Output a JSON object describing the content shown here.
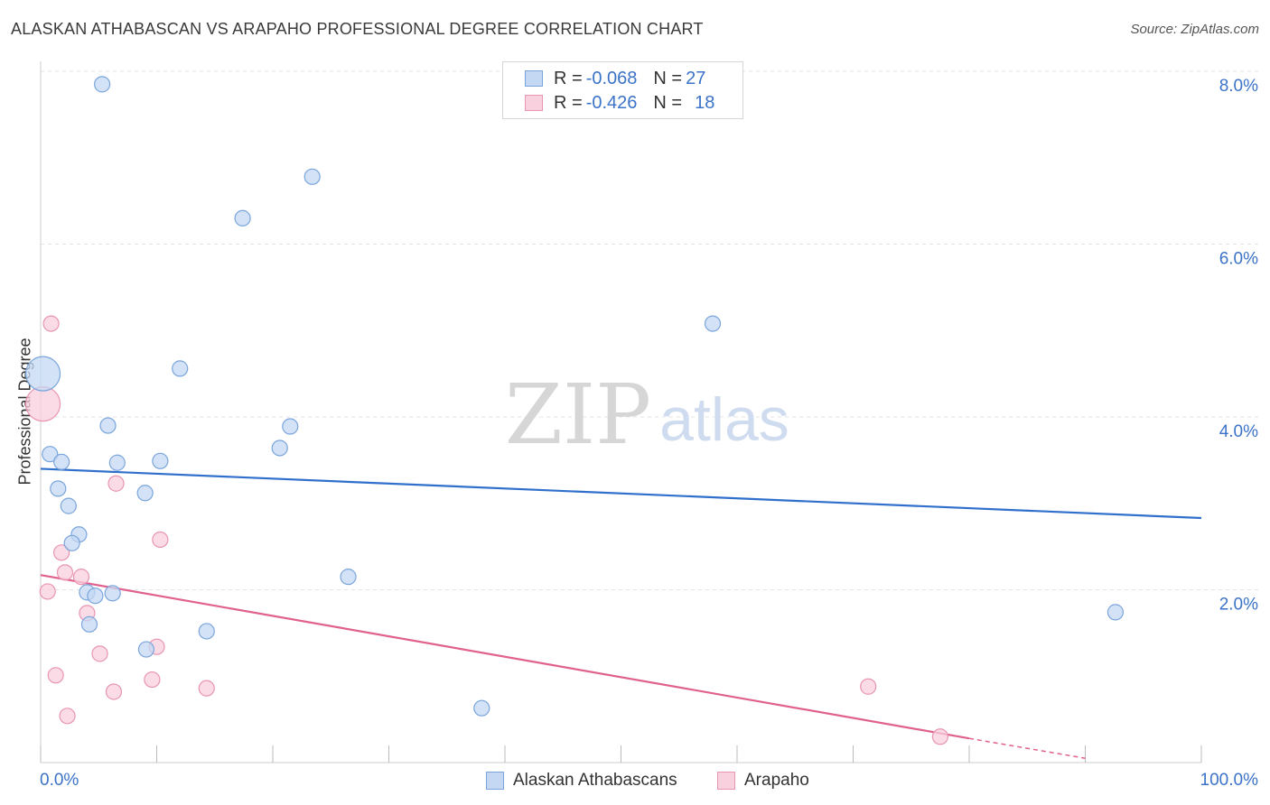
{
  "header": {
    "title": "ALASKAN ATHABASCAN VS ARAPAHO PROFESSIONAL DEGREE CORRELATION CHART",
    "source": "Source: ZipAtlas.com"
  },
  "watermark": {
    "zip": "ZIP",
    "atlas": "atlas"
  },
  "legend": {
    "rows": [
      {
        "r_label": "R =",
        "r_value": "-0.068",
        "n_label": "N =",
        "n_value": "27"
      },
      {
        "r_label": "R =",
        "r_value": "-0.426",
        "n_label": "N =",
        "n_value": "18"
      }
    ]
  },
  "colors": {
    "blue_fill": "#c4d8f3",
    "blue_stroke": "#7aa5dc",
    "blue_line": "#3070cc",
    "pink_fill": "#f9d0dd",
    "pink_stroke": "#e895b0",
    "pink_line": "#e0608e",
    "axis_text": "#3b73c8",
    "grid": "#e3e3e3"
  },
  "chart_data": {
    "type": "scatter",
    "title": "ALASKAN ATHABASCAN VS ARAPAHO PROFESSIONAL DEGREE CORRELATION CHART",
    "xlabel": "",
    "ylabel": "Professional Degree",
    "xlim": [
      0,
      100
    ],
    "ylim": [
      0,
      8.2
    ],
    "x_tick_labels": [
      "0.0%",
      "100.0%"
    ],
    "y_ticks": [
      2,
      4,
      6,
      8
    ],
    "y_tick_labels": [
      "2.0%",
      "4.0%",
      "6.0%",
      "8.0%"
    ],
    "grid": true,
    "legend_position": "top-center and bottom",
    "series": [
      {
        "name": "Alaskan Athabascans",
        "r": -0.068,
        "n": 27,
        "trend": {
          "x": [
            0,
            100
          ],
          "y": [
            3.4,
            2.83
          ]
        },
        "points": [
          {
            "x": 0.2,
            "y": 4.5,
            "large": true
          },
          {
            "x": 5.3,
            "y": 7.85
          },
          {
            "x": 23.4,
            "y": 6.78
          },
          {
            "x": 17.4,
            "y": 6.3
          },
          {
            "x": 57.9,
            "y": 5.08
          },
          {
            "x": 12.0,
            "y": 4.56
          },
          {
            "x": 5.8,
            "y": 3.9
          },
          {
            "x": 21.5,
            "y": 3.89
          },
          {
            "x": 20.6,
            "y": 3.64
          },
          {
            "x": 0.8,
            "y": 3.57
          },
          {
            "x": 1.8,
            "y": 3.48
          },
          {
            "x": 6.6,
            "y": 3.47
          },
          {
            "x": 10.3,
            "y": 3.49
          },
          {
            "x": 1.5,
            "y": 3.17
          },
          {
            "x": 9.0,
            "y": 3.12
          },
          {
            "x": 2.4,
            "y": 2.97
          },
          {
            "x": 3.3,
            "y": 2.64
          },
          {
            "x": 2.7,
            "y": 2.54
          },
          {
            "x": 26.5,
            "y": 2.15
          },
          {
            "x": 4.0,
            "y": 1.97
          },
          {
            "x": 6.2,
            "y": 1.96
          },
          {
            "x": 4.7,
            "y": 1.93
          },
          {
            "x": 4.2,
            "y": 1.6
          },
          {
            "x": 14.3,
            "y": 1.52
          },
          {
            "x": 9.1,
            "y": 1.31
          },
          {
            "x": 92.6,
            "y": 1.74
          },
          {
            "x": 38.0,
            "y": 0.63
          }
        ]
      },
      {
        "name": "Arapaho",
        "r": -0.426,
        "n": 18,
        "trend": {
          "x": [
            0,
            80,
            90
          ],
          "y": [
            2.17,
            0.28,
            0.05
          ]
        },
        "points": [
          {
            "x": 0.2,
            "y": 4.15,
            "large": true
          },
          {
            "x": 0.9,
            "y": 5.08
          },
          {
            "x": 6.5,
            "y": 3.23
          },
          {
            "x": 10.3,
            "y": 2.58
          },
          {
            "x": 1.8,
            "y": 2.43
          },
          {
            "x": 2.1,
            "y": 2.2
          },
          {
            "x": 3.5,
            "y": 2.15
          },
          {
            "x": 0.6,
            "y": 1.98
          },
          {
            "x": 4.0,
            "y": 1.73
          },
          {
            "x": 10.0,
            "y": 1.34
          },
          {
            "x": 5.1,
            "y": 1.26
          },
          {
            "x": 1.3,
            "y": 1.01
          },
          {
            "x": 9.6,
            "y": 0.96
          },
          {
            "x": 14.3,
            "y": 0.86
          },
          {
            "x": 6.3,
            "y": 0.82
          },
          {
            "x": 71.3,
            "y": 0.88
          },
          {
            "x": 2.3,
            "y": 0.54
          },
          {
            "x": 77.5,
            "y": 0.3
          }
        ]
      }
    ]
  }
}
